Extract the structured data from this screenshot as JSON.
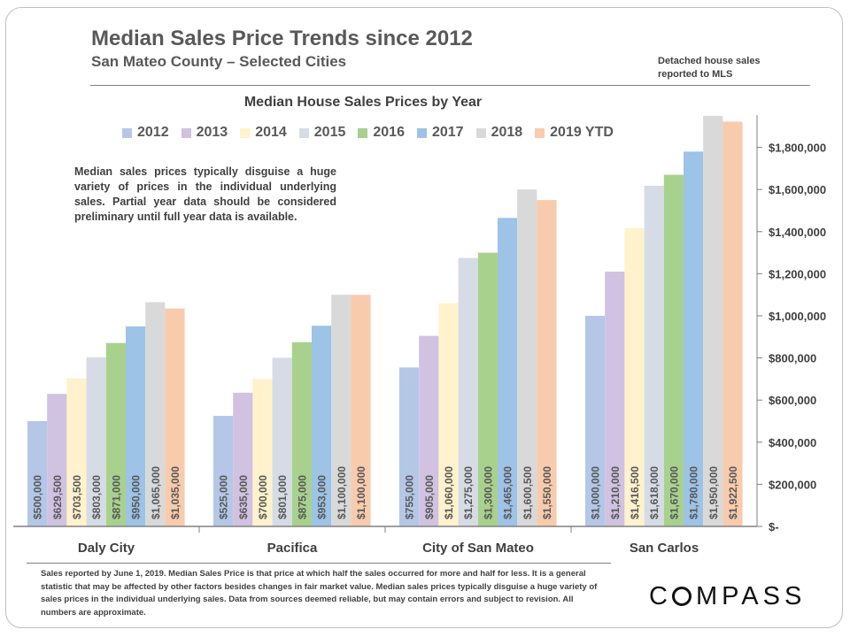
{
  "header": {
    "title": "Median Sales Price Trends since 2012",
    "subtitle": "San Mateo County – Selected Cities",
    "note": "Detached house sales reported to MLS"
  },
  "inset_note": "Median sales prices typically disguise a huge variety of prices in the individual underlying sales. Partial year data should be considered preliminary until full year data is available.",
  "footer": "Sales reported by June 1, 2019. Median Sales Price is that price at which half the sales occurred for more and half for less. It is a general statistic that may be affected by other factors besides changes in fair market value. Median sales prices typically disguise a huge variety of sales prices in the individual underlying sales. Data from sources deemed reliable, but may contain errors and subject to revision.   All numbers are approximate.",
  "logo": "COMPASS",
  "chart_data": {
    "type": "bar",
    "title": "Median House Sales Prices by Year",
    "categories": [
      "Daly City",
      "Pacifica",
      "City of San Mateo",
      "San Carlos"
    ],
    "series": [
      {
        "name": "2012",
        "color": "#b4c7e7",
        "values": [
          500000,
          525000,
          755000,
          1000000
        ],
        "labels": [
          "$500,000",
          "$525,000",
          "$755,000",
          "$1,000,000"
        ]
      },
      {
        "name": "2013",
        "color": "#d0c2e0",
        "values": [
          629500,
          635000,
          905000,
          1210000
        ],
        "labels": [
          "$629,500",
          "$635,000",
          "$905,000",
          "$1,210,000"
        ]
      },
      {
        "name": "2014",
        "color": "#fff2cc",
        "values": [
          703500,
          700000,
          1060000,
          1416500
        ],
        "labels": [
          "$703,500",
          "$700,000",
          "$1,060,000",
          "$1,416,500"
        ]
      },
      {
        "name": "2015",
        "color": "#d6dce5",
        "values": [
          803000,
          801000,
          1275000,
          1618000
        ],
        "labels": [
          "$803,000",
          "$801,000",
          "$1,275,000",
          "$1,618,000"
        ]
      },
      {
        "name": "2016",
        "color": "#a9d18e",
        "values": [
          871000,
          875000,
          1300000,
          1670000
        ],
        "labels": [
          "$871,000",
          "$875,000",
          "$1,300,000",
          "$1,670,000"
        ]
      },
      {
        "name": "2017",
        "color": "#9dc3e6",
        "values": [
          950000,
          953000,
          1465000,
          1780000
        ],
        "labels": [
          "$950,000",
          "$953,000",
          "$1,465,000",
          "$1,780,000"
        ]
      },
      {
        "name": "2018",
        "color": "#d9d9d9",
        "values": [
          1065000,
          1100000,
          1600500,
          1950000
        ],
        "labels": [
          "$1,065,000",
          "$1,100,000",
          "$1,600,500",
          "$1,950,000"
        ]
      },
      {
        "name": "2019 YTD",
        "color": "#f8cbad",
        "values": [
          1035000,
          1100000,
          1550000,
          1922500
        ],
        "labels": [
          "$1,035,000",
          "$1,100,000",
          "$1,550,000",
          "$1,922,500"
        ]
      }
    ],
    "yticks": [
      0,
      200000,
      400000,
      600000,
      800000,
      1000000,
      1200000,
      1400000,
      1600000,
      1800000
    ],
    "ytick_labels": [
      "$-",
      "$200,000",
      "$400,000",
      "$600,000",
      "$800,000",
      "$1,000,000",
      "$1,200,000",
      "$1,400,000",
      "$1,600,000",
      "$1,800,000"
    ],
    "ylim": [
      0,
      2000000
    ],
    "yaxis_side": "right",
    "legend_placement": "top",
    "grid": false
  }
}
